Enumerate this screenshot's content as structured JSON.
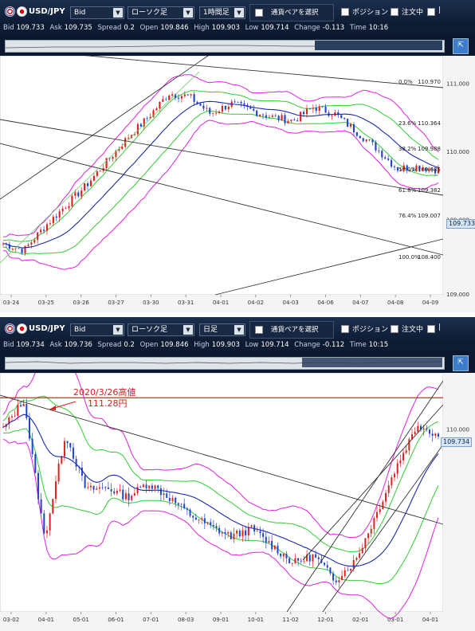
{
  "top": {
    "pair": "USD/JPY",
    "price_type": "Bid",
    "chart_type": "ローソク足",
    "timeframe": "1時間足",
    "select_pair": "通貨ペアを選択",
    "position": "ポジション",
    "order": "注文中",
    "extra": "|",
    "info": {
      "bid_label": "Bid",
      "bid": "109.733",
      "ask_label": "Ask",
      "ask": "109.735",
      "spread_label": "Spread",
      "spread": "0.2",
      "open_label": "Open",
      "open": "109.846",
      "high_label": "High",
      "high": "109.903",
      "low_label": "Low",
      "low": "109.714",
      "change_label": "Change",
      "change": "-0.113",
      "time_label": "Time",
      "time": "10:16"
    },
    "price_tag": "109.733",
    "nav_button": "⇱"
  },
  "bottom": {
    "pair": "USD/JPY",
    "price_type": "Bid",
    "chart_type": "ローソク足",
    "timeframe": "日足",
    "select_pair": "通貨ペアを選択",
    "position": "ポジション",
    "order": "注文中",
    "extra": "|",
    "info": {
      "bid_label": "Bid",
      "bid": "109.734",
      "ask_label": "Ask",
      "ask": "109.736",
      "spread_label": "Spread",
      "spread": "0.2",
      "open_label": "Open",
      "open": "109.846",
      "high_label": "High",
      "high": "109.903",
      "low_label": "Low",
      "low": "109.714",
      "change_label": "Change",
      "change": "-0.112",
      "time_label": "Time",
      "time": "10:15"
    },
    "price_tag": "109.734",
    "nav_button": "⇱"
  },
  "chart_data": [
    {
      "type": "candlestick",
      "timeframe": "1時間足",
      "x_ticks": [
        "03-24",
        "03-25",
        "03-26",
        "03-27",
        "03-30",
        "03-31",
        "04-01",
        "04-02",
        "04-03",
        "04-06",
        "04-07",
        "04-08",
        "04-09"
      ],
      "y_ticks": [
        {
          "label": "111.000",
          "value": 111.0
        },
        {
          "label": "110.000",
          "value": 110.0
        },
        {
          "label": "109.000",
          "value": 109.0
        }
      ],
      "ylim": [
        107.9,
        111.4
      ],
      "fibonacci": [
        {
          "label": "0.0%",
          "price": "110.970",
          "value": 110.97
        },
        {
          "label": "23.6%",
          "price": "110.364",
          "value": 110.364
        },
        {
          "label": "38.2%",
          "price": "109.988",
          "value": 109.988
        },
        {
          "label": "50.0%",
          "price": "109.685",
          "value": 109.685
        },
        {
          "label": "61.8%",
          "price": "109.382",
          "value": 109.382
        },
        {
          "label": "76.4%",
          "price": "109.007",
          "value": 109.007
        },
        {
          "label": "100.0%",
          "price": "108.400",
          "value": 108.4
        }
      ],
      "close_path": [
        108.65,
        108.55,
        108.9,
        109.2,
        109.5,
        109.85,
        110.2,
        110.5,
        110.85,
        110.8,
        110.55,
        110.7,
        110.6,
        110.5,
        110.45,
        110.65,
        110.55,
        110.3,
        110.05,
        109.75,
        109.78,
        109.73
      ],
      "bottom_label": "109.000"
    },
    {
      "type": "candlestick",
      "timeframe": "日足",
      "x_ticks": [
        "03-02",
        "04-01",
        "05-01",
        "06-01",
        "07-01",
        "08-03",
        "09-01",
        "10-01",
        "11-02",
        "12-01",
        "02-01",
        "03-01",
        "04-01"
      ],
      "y_tick_label": "110.000",
      "annotation": {
        "text_line1": "2020/3/26高値",
        "text_line2": "111.28円",
        "value": 111.28
      },
      "ylim": [
        102.5,
        112.3
      ],
      "close_path": [
        110.0,
        111.2,
        105.5,
        109.8,
        107.5,
        107.6,
        107.2,
        107.8,
        107.2,
        106.5,
        106.0,
        105.6,
        105.9,
        105.2,
        104.5,
        104.8,
        103.8,
        104.6,
        106.5,
        108.5,
        110.2,
        109.73
      ]
    }
  ]
}
